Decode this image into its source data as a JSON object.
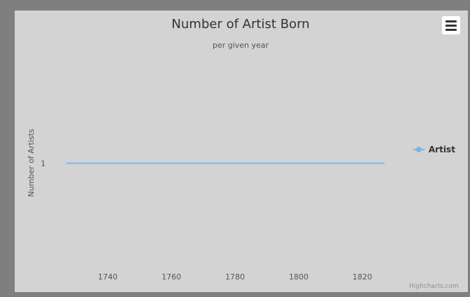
{
  "chart_data": {
    "type": "line",
    "title": "Number of Artist Born",
    "subtitle": "per given year",
    "xlabel": "",
    "ylabel": "Number of Artists",
    "xlim": [
      1724,
      1832
    ],
    "ylim": [
      0,
      2
    ],
    "x_ticks": [
      1740,
      1760,
      1780,
      1800,
      1820
    ],
    "y_ticks": [
      1
    ],
    "grid": false,
    "legend_position": "right",
    "series": [
      {
        "name": "Artist",
        "color": "#7cb5ec",
        "x": [
          1727,
          1827
        ],
        "y": [
          1,
          1
        ]
      }
    ]
  },
  "credits": "Highcharts.com",
  "menu_icon": "hamburger-menu-icon"
}
